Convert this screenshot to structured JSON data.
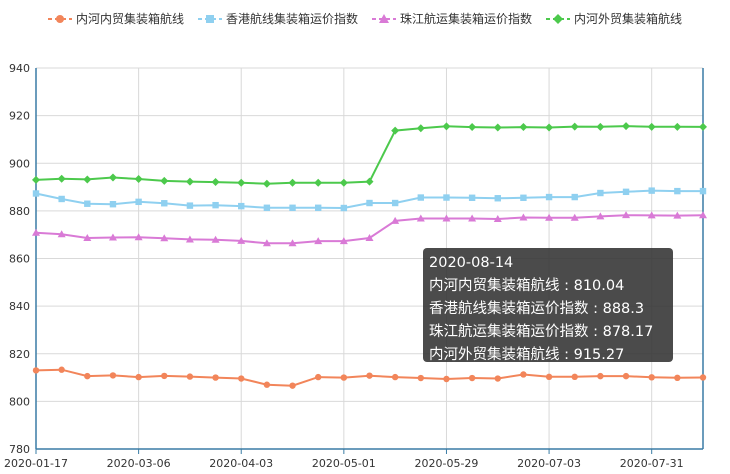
{
  "legend": [
    {
      "name": "内河内贸集装箱航线",
      "color": "#f2855a",
      "marker": "circle"
    },
    {
      "name": "香港航线集装箱运价指数",
      "color": "#8fd0f0",
      "marker": "square"
    },
    {
      "name": "珠江航运集装箱运价指数",
      "color": "#d97ad6",
      "marker": "triangle"
    },
    {
      "name": "内河外贸集装箱航线",
      "color": "#4cc94c",
      "marker": "diamond"
    }
  ],
  "tooltip": {
    "date": "2020-08-14",
    "line1": "内河内贸集装箱航线 : 810.04",
    "line2": "香港航线集装箱运价指数 : 888.3",
    "line3": "珠江航运集装箱运价指数 : 878.17",
    "line4": "内河外贸集装箱航线 : 915.27"
  },
  "chart_data": {
    "type": "line",
    "title": "",
    "xlabel": "",
    "ylabel": "",
    "ylim": [
      780,
      940
    ],
    "yticks": [
      780,
      800,
      820,
      840,
      860,
      880,
      900,
      920,
      940
    ],
    "x_tick_labels": [
      "2020-01-17",
      "2020-03-06",
      "2020-04-03",
      "2020-05-01",
      "2020-05-29",
      "2020-07-03",
      "2020-07-31"
    ],
    "x_tick_index": [
      0,
      4,
      8,
      12,
      16,
      20,
      24
    ],
    "grid": true,
    "legend_position": "top",
    "series": [
      {
        "name": "内河内贸集装箱航线",
        "color": "#f2855a",
        "marker": "circle",
        "values": [
          813,
          813.3,
          810.6,
          810.9,
          810.2,
          810.7,
          810.4,
          810,
          809.6,
          807,
          806.6,
          810.2,
          810,
          810.8,
          810.2,
          809.8,
          809.4,
          809.8,
          809.6,
          811.3,
          810.3,
          810.3,
          810.6,
          810.6,
          810.1,
          809.9,
          810.04
        ]
      },
      {
        "name": "香港航线集装箱运价指数",
        "color": "#8fd0f0",
        "marker": "square",
        "values": [
          887.3,
          885,
          883,
          882.8,
          883.8,
          883.2,
          882.2,
          882.4,
          882,
          881.3,
          881.3,
          881.3,
          881.2,
          883.3,
          883.3,
          885.6,
          885.6,
          885.5,
          885.3,
          885.5,
          885.8,
          885.8,
          887.5,
          888,
          888.5,
          888.3,
          888.3
        ]
      },
      {
        "name": "珠江航运集装箱运价指数",
        "color": "#d97ad6",
        "marker": "triangle",
        "values": [
          870.8,
          870.2,
          868.6,
          868.8,
          868.9,
          868.5,
          868,
          867.9,
          867.4,
          866.4,
          866.4,
          867.3,
          867.3,
          868.6,
          875.8,
          876.8,
          876.8,
          876.8,
          876.6,
          877.2,
          877.1,
          877.1,
          877.7,
          878.2,
          878.1,
          878,
          878.17
        ]
      },
      {
        "name": "内河外贸集装箱航线",
        "color": "#4cc94c",
        "marker": "diamond",
        "values": [
          893,
          893.5,
          893.2,
          894,
          893.4,
          892.6,
          892.3,
          892.1,
          891.8,
          891.4,
          891.8,
          891.8,
          891.8,
          892.3,
          913.7,
          914.7,
          915.5,
          915.2,
          915,
          915.2,
          915,
          915.4,
          915.3,
          915.6,
          915.3,
          915.3,
          915.27
        ]
      }
    ]
  }
}
